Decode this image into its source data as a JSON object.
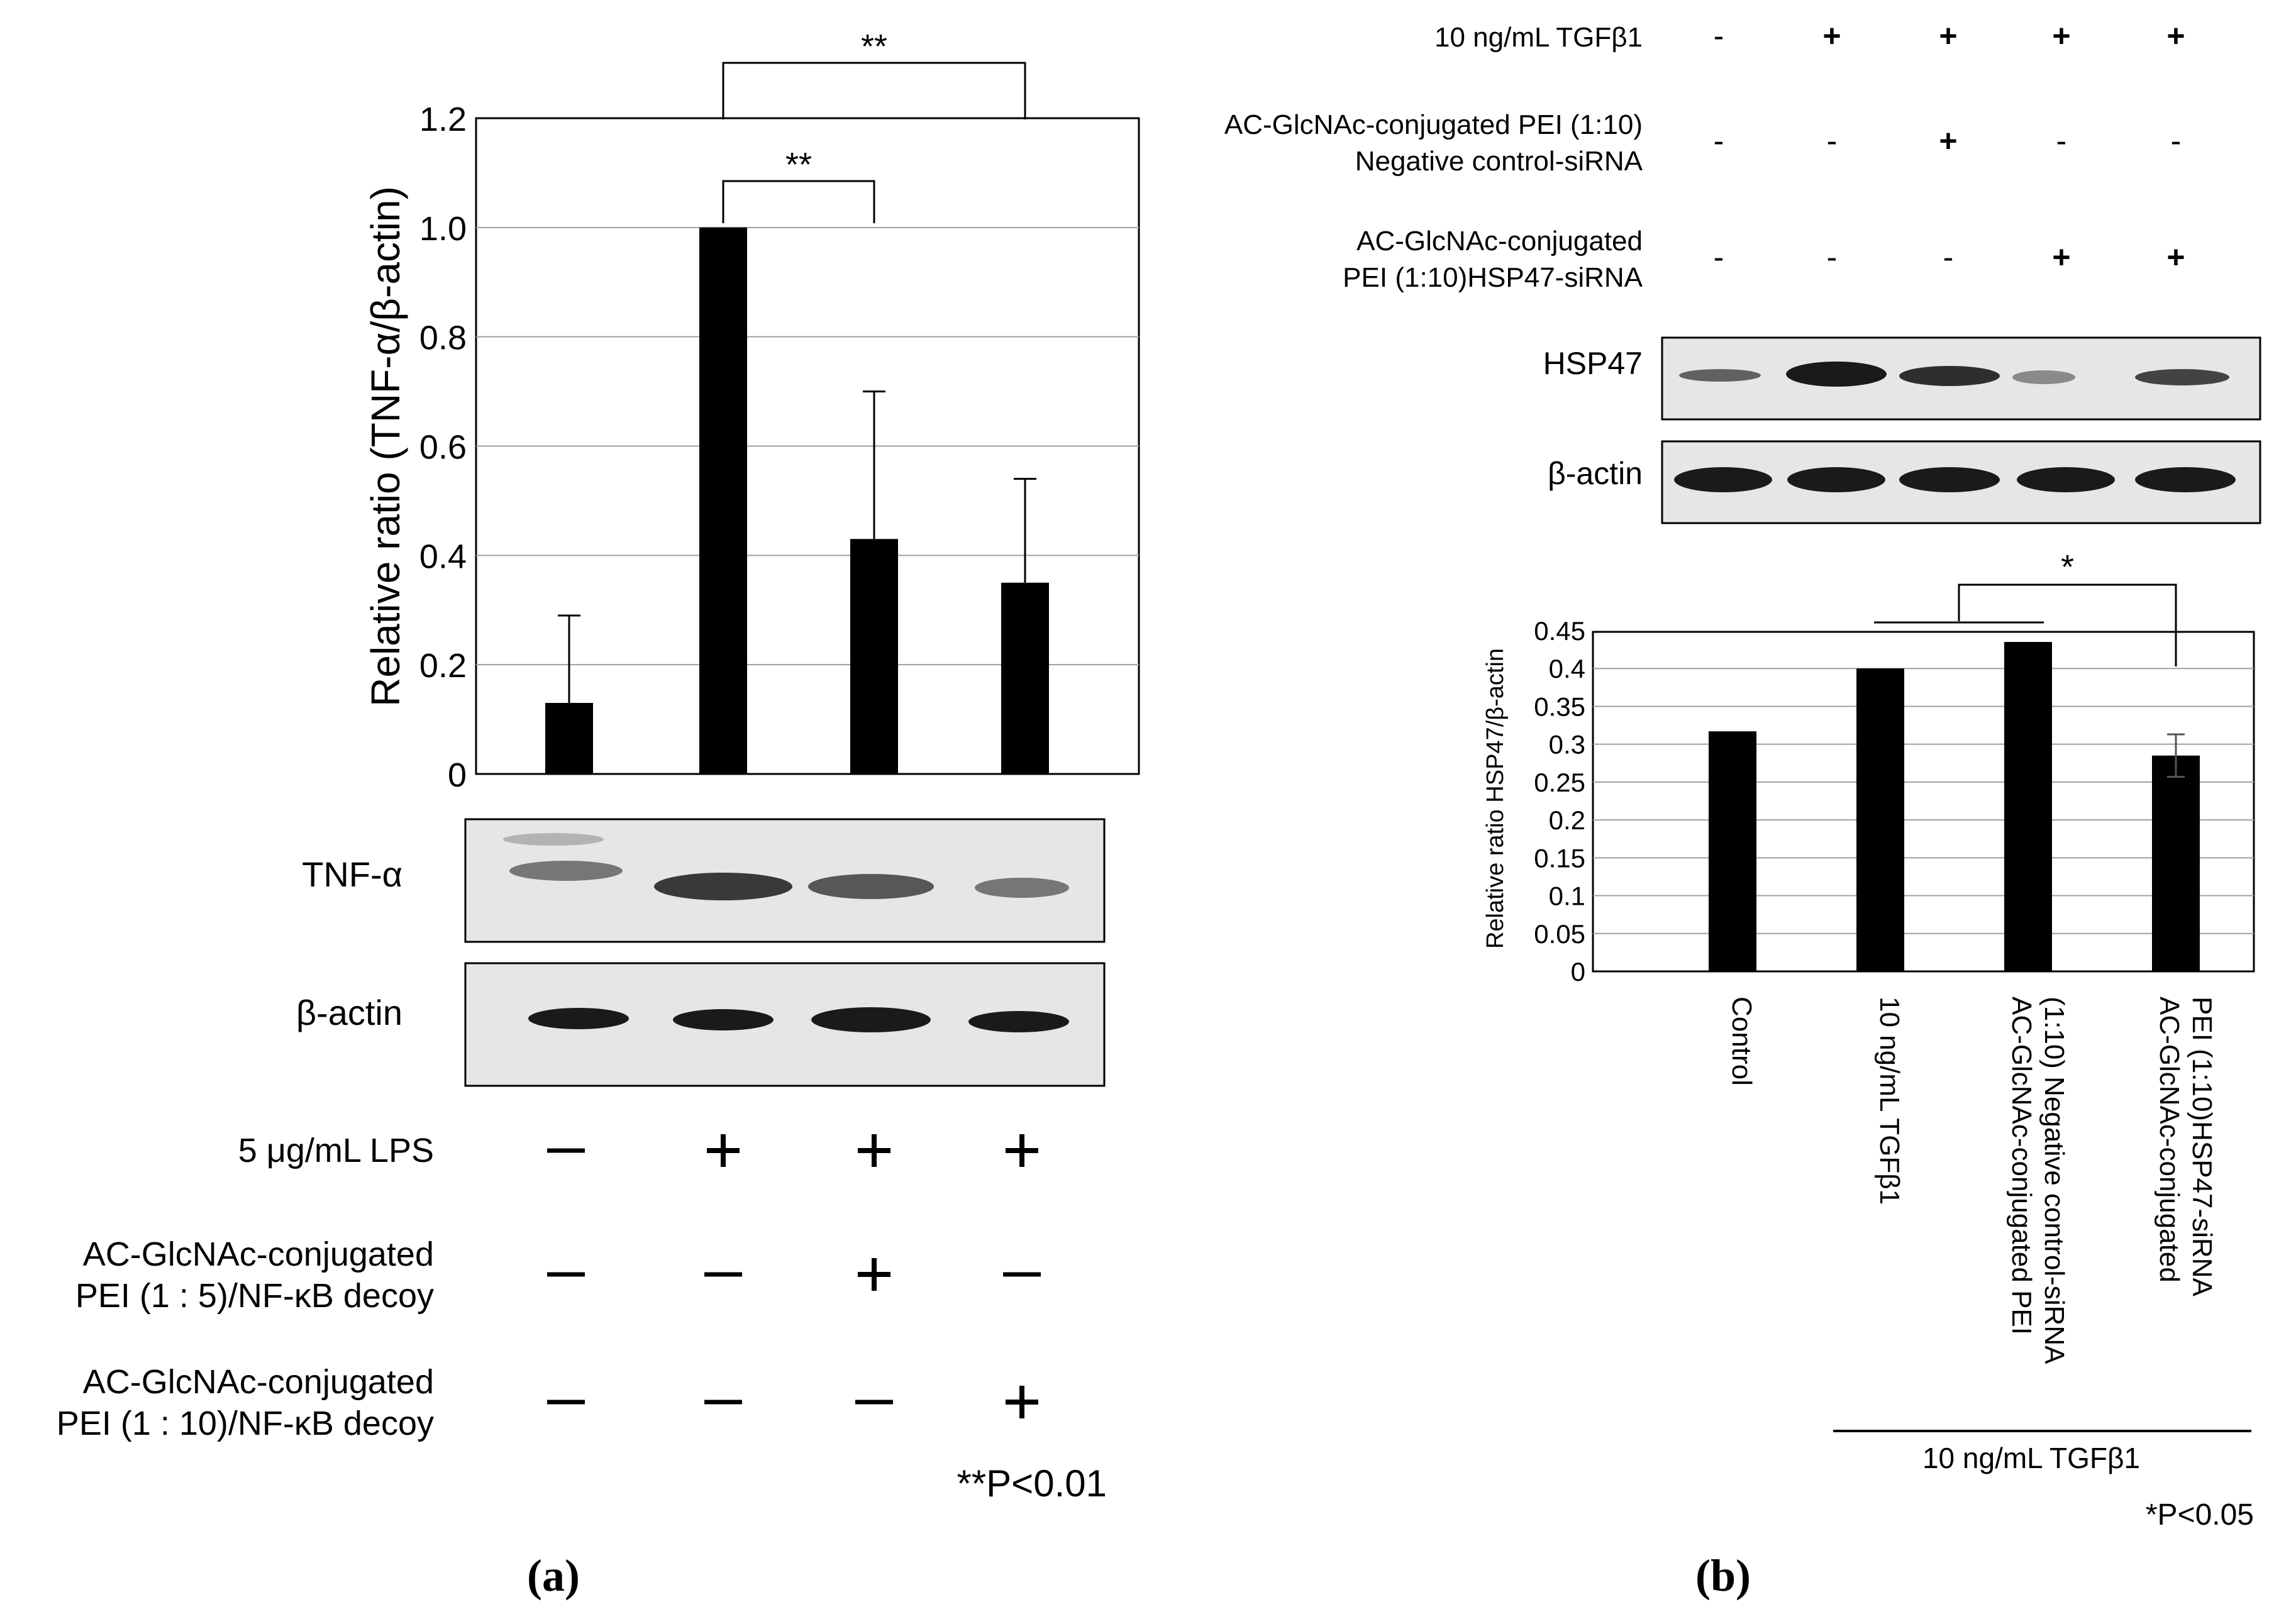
{
  "colors": {
    "bar": "#000000",
    "grid": "#a0a0a0",
    "blot_bg": "#e6e6e6",
    "band": "#1a1a1a"
  },
  "chart_data": [
    {
      "panel": "(a)",
      "type": "bar",
      "ylabel": "Relative ratio (TNF-α/β-actin)",
      "ylim": [
        0,
        1.2
      ],
      "yticks": [
        "0",
        "0.2",
        "0.4",
        "0.6",
        "0.8",
        "1.0",
        "1.2"
      ],
      "grid": true,
      "values": [
        0.13,
        1.0,
        0.43,
        0.35
      ],
      "errors": [
        0.16,
        0,
        0.27,
        0.19
      ],
      "significance": [
        {
          "from": 1,
          "to": 2,
          "label": "**"
        },
        {
          "from": 1,
          "to": 3,
          "label": "**"
        }
      ],
      "blots": [
        "TNF-α",
        "β-actin"
      ],
      "conditions": [
        {
          "label": "5 μg/mL LPS",
          "marks": [
            "—",
            "+",
            "+",
            "+"
          ]
        },
        {
          "label": [
            "AC-GlcNAc-conjugated",
            "PEI (1 : 5)/NF-κB decoy"
          ],
          "marks": [
            "—",
            "—",
            "+",
            "—"
          ]
        },
        {
          "label": [
            "AC-GlcNAc-conjugated",
            "PEI (1 : 10)/NF-κB decoy"
          ],
          "marks": [
            "—",
            "—",
            "—",
            "+"
          ]
        }
      ],
      "pvalue": "**P<0.01"
    },
    {
      "panel": "(b)",
      "type": "bar",
      "ylabel": "Relative ratio HSP47/β-actin",
      "ylim": [
        0,
        0.45
      ],
      "yticks": [
        "0",
        "0.05",
        "0.1",
        "0.15",
        "0.2",
        "0.25",
        "0.3",
        "0.35",
        "0.4",
        "0.45"
      ],
      "grid": true,
      "categories": [
        [
          "Control"
        ],
        [
          "10 ng/mL TGFβ1"
        ],
        [
          "AC-GlcNAc-conjugated PEI",
          "(1:10) Negative control-siRNA"
        ],
        [
          "AC-GlcNAc-conjugated",
          "PEI (1:10)HSP47-siRNA"
        ]
      ],
      "values": [
        0.317,
        0.4,
        0.435,
        0.285
      ],
      "errors": [
        0,
        0,
        0,
        0.028
      ],
      "significance": [
        {
          "from": 1.5,
          "to": 3,
          "label": "*"
        }
      ],
      "group_label": "10 ng/mL TGFβ1",
      "blots": [
        "HSP47",
        "β-actin"
      ],
      "conditions": [
        {
          "label": [
            "10 ng/mL TGFβ1"
          ],
          "marks": [
            "-",
            "+",
            "+",
            "+",
            "+"
          ]
        },
        {
          "label": [
            "AC-GlcNAc-conjugated PEI (1:10)",
            "Negative control-siRNA"
          ],
          "marks": [
            "-",
            "-",
            "+",
            "-",
            "-"
          ]
        },
        {
          "label": [
            "AC-GlcNAc-conjugated",
            "PEI (1:10)HSP47-siRNA"
          ],
          "marks": [
            "-",
            "-",
            "-",
            "+",
            "+"
          ]
        }
      ],
      "pvalue": "*P<0.05"
    }
  ]
}
